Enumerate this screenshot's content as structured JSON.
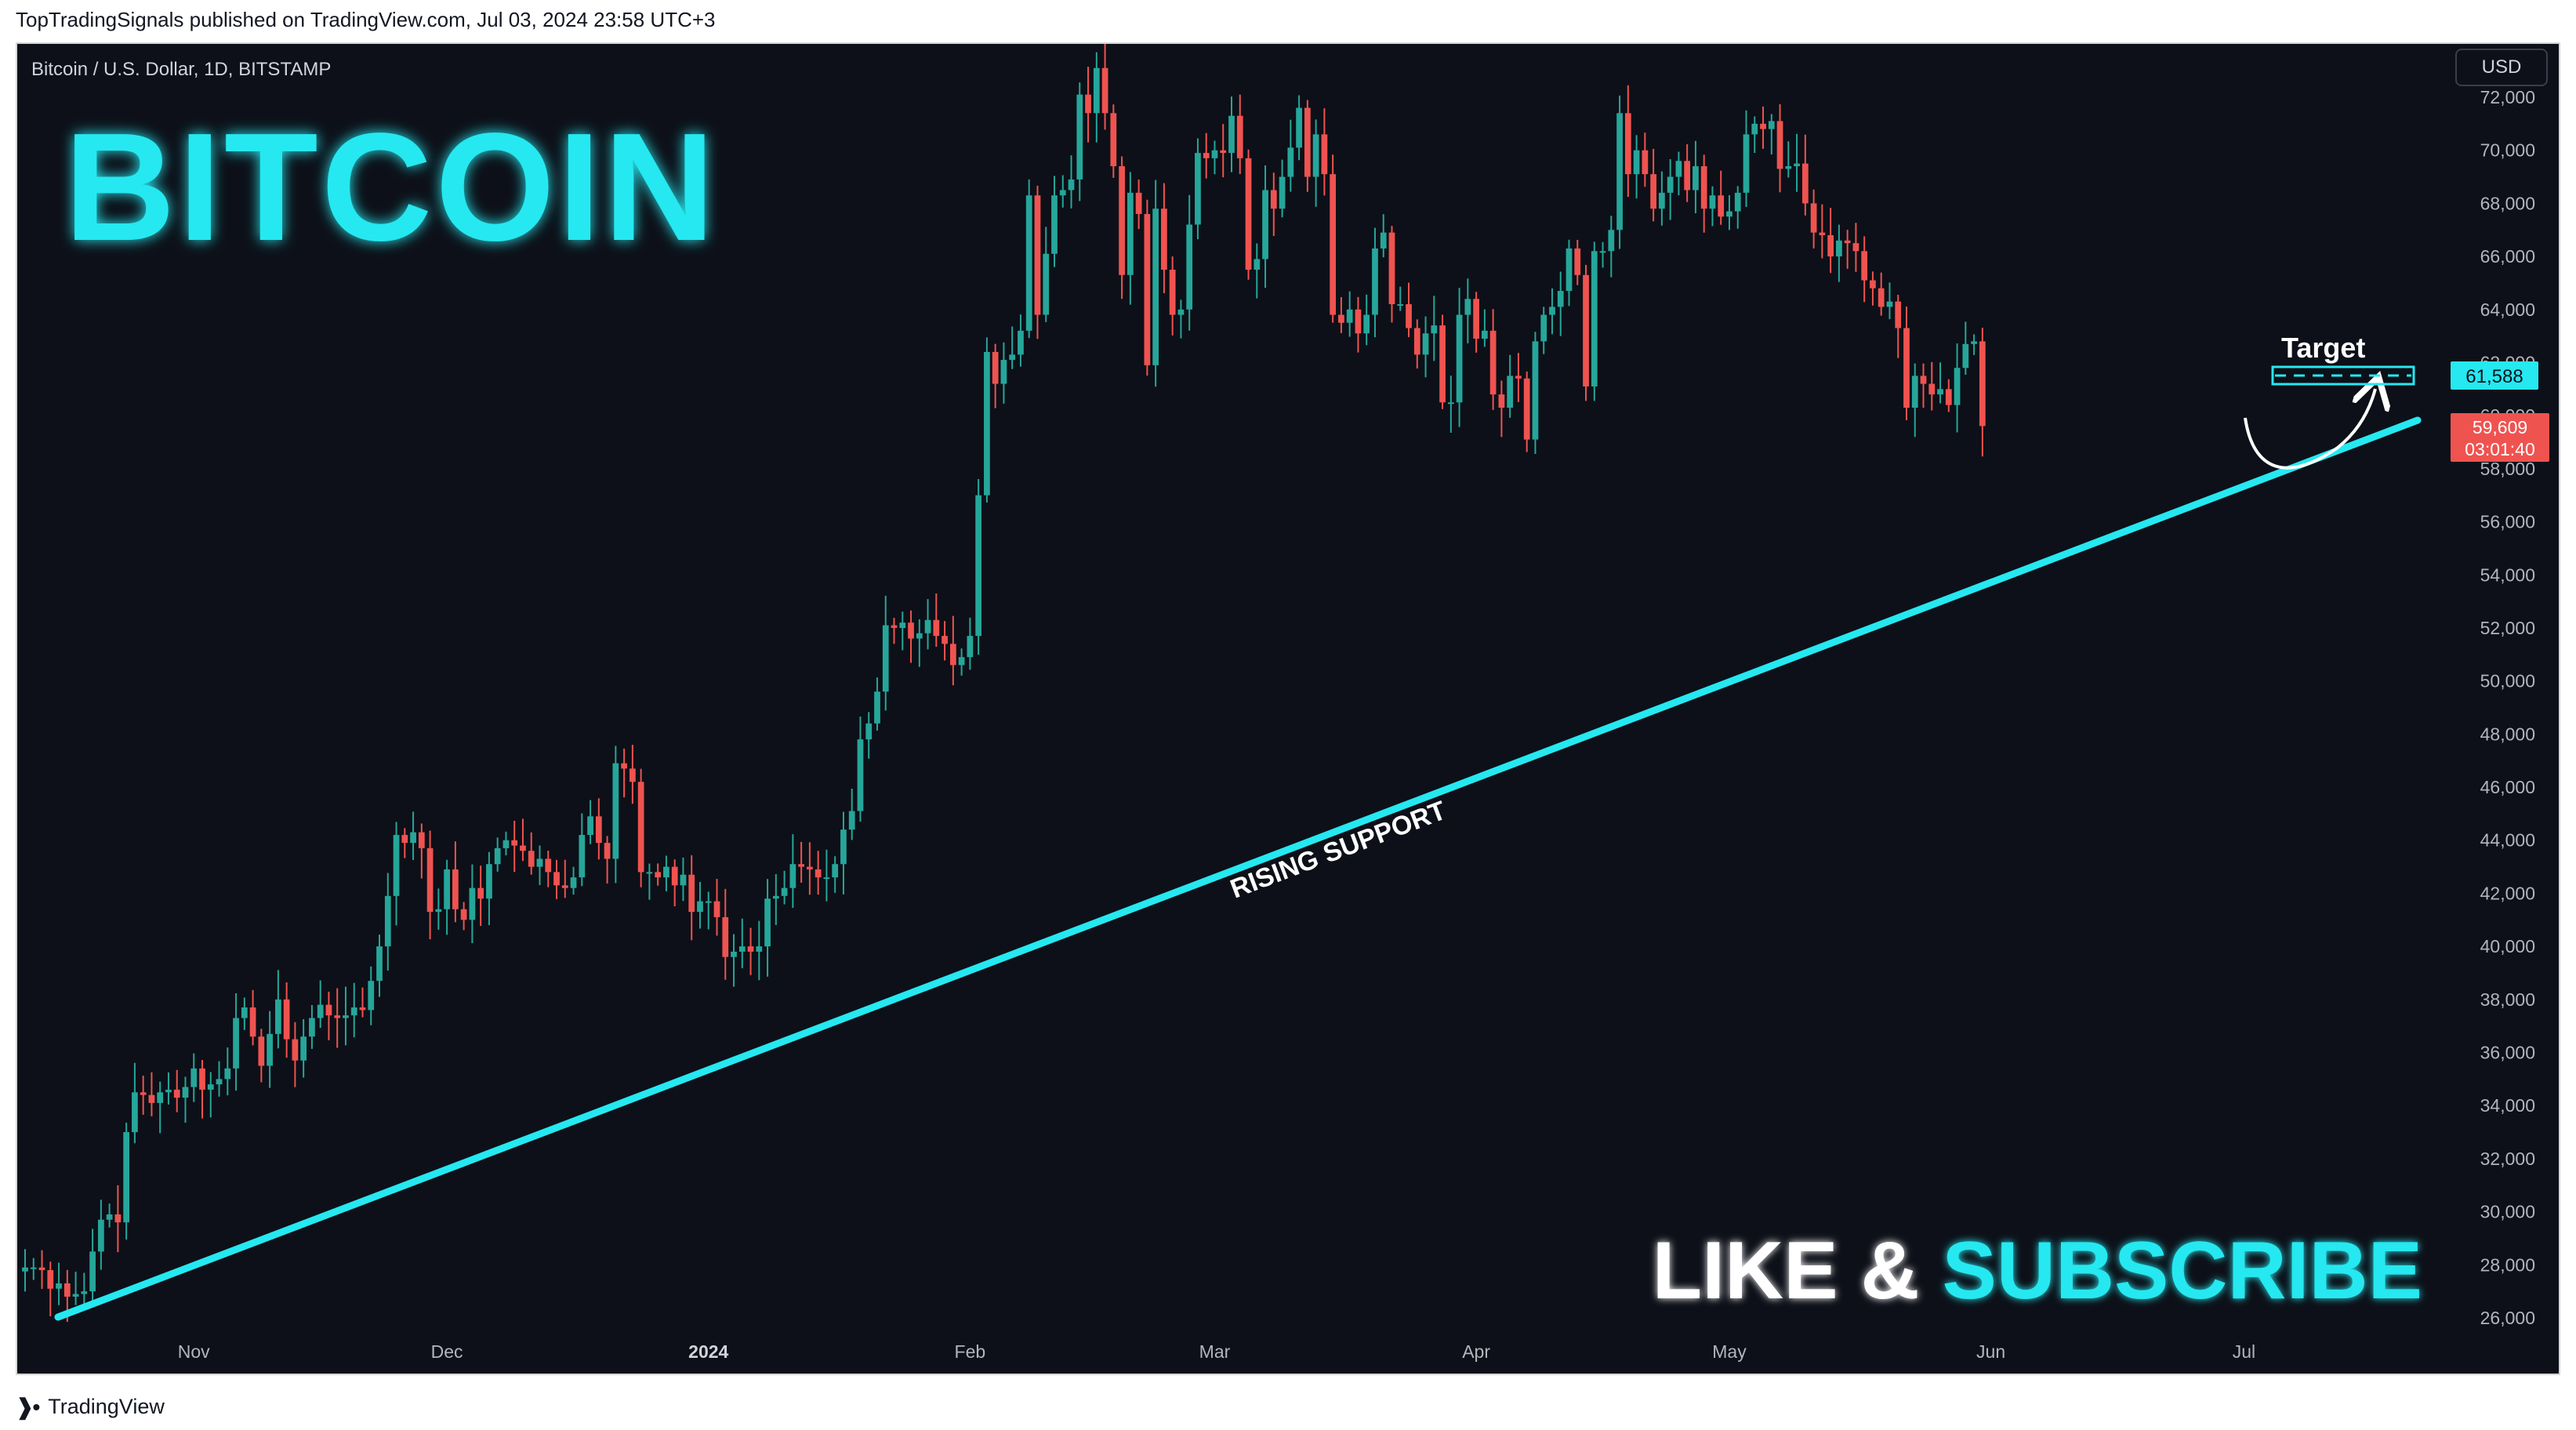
{
  "header": {
    "published_line": "TopTradingSignals published on TradingView.com, Jul 03, 2024 23:58 UTC+3"
  },
  "footer": {
    "logo_icon": "tradingview-logo-icon",
    "brand": "TradingView"
  },
  "chart": {
    "symbol_line": "Bitcoin / U.S. Dollar, 1D, BITSTAMP",
    "currency_button": "USD",
    "overlay_title": "BITCOIN",
    "overlay_cta_left": "LIKE & ",
    "overlay_cta_right": "SUBSCRIBE",
    "support_label": "RISING SUPPORT",
    "target_label": "Target",
    "price_tags": {
      "target_value": "61,588",
      "last_price": "59,609",
      "countdown": "03:01:40"
    },
    "colors": {
      "background": "#0d1018",
      "up": "#26a69a",
      "down": "#ef5350",
      "cyan": "#25e8f0",
      "axis_text": "#b2b5be",
      "white": "#ffffff"
    }
  },
  "chart_data": {
    "type": "candlestick",
    "ylim": [
      25000,
      73800
    ],
    "y_ticks": [
      26000,
      28000,
      30000,
      32000,
      34000,
      36000,
      38000,
      40000,
      42000,
      44000,
      46000,
      48000,
      50000,
      52000,
      54000,
      56000,
      58000,
      60000,
      62000,
      64000,
      66000,
      68000,
      70000,
      72000
    ],
    "x_ticks": [
      {
        "label": "Nov",
        "bold": false
      },
      {
        "label": "Dec",
        "bold": false
      },
      {
        "label": "2024",
        "bold": true
      },
      {
        "label": "Feb",
        "bold": false
      },
      {
        "label": "Mar",
        "bold": false
      },
      {
        "label": "Apr",
        "bold": false
      },
      {
        "label": "May",
        "bold": false
      },
      {
        "label": "Jun",
        "bold": false
      },
      {
        "label": "Jul",
        "bold": false
      }
    ],
    "start_date": "2023-10-12",
    "end_date": "2024-07-03",
    "closes": [
      27900,
      27900,
      27800,
      27100,
      27300,
      26800,
      26900,
      27000,
      28500,
      29700,
      29900,
      29600,
      33000,
      34500,
      34400,
      34100,
      34500,
      34600,
      34300,
      34700,
      35400,
      34600,
      34800,
      35000,
      35400,
      37300,
      37700,
      36600,
      35500,
      36700,
      38000,
      36500,
      35700,
      36600,
      37300,
      37800,
      37400,
      37300,
      37400,
      37700,
      37600,
      38700,
      40000,
      41900,
      44200,
      43900,
      44300,
      43700,
      41300,
      41400,
      42900,
      41400,
      41000,
      42200,
      41800,
      43100,
      43700,
      44000,
      43800,
      43600,
      43000,
      43300,
      42800,
      42300,
      42200,
      42600,
      44200,
      44900,
      43900,
      43300,
      46900,
      46700,
      46200,
      42800,
      42800,
      42600,
      43000,
      42300,
      42700,
      41300,
      41700,
      41700,
      41100,
      39600,
      39800,
      40000,
      39800,
      40000,
      41800,
      41900,
      42200,
      43100,
      43000,
      42900,
      42600,
      42600,
      43100,
      44400,
      45100,
      47800,
      48400,
      49600,
      52100,
      52000,
      52200,
      51600,
      51800,
      52300,
      51700,
      51400,
      50600,
      50900,
      51700,
      57000,
      62400,
      61200,
      62100,
      62300,
      63200,
      68300,
      63800,
      66100,
      68300,
      68500,
      68900,
      72100,
      71400,
      73100,
      71400,
      69400,
      65300,
      68400,
      67600,
      61900,
      67800,
      65500,
      63800,
      64000,
      67200,
      69900,
      69700,
      70000,
      69900,
      71300,
      69700,
      65500,
      65900,
      68500,
      67800,
      69000,
      70100,
      71600,
      69000,
      70600,
      69100,
      63800,
      63500,
      64000,
      63100,
      63800,
      66300,
      66900,
      64200,
      64200,
      63300,
      62300,
      63100,
      63400,
      60500,
      60500,
      63800,
      64400,
      62900,
      63200,
      60800,
      60300,
      61500,
      61400,
      59100,
      62800,
      63800,
      64100,
      64700,
      66300,
      65300,
      61100,
      66200,
      66200,
      67000,
      71400,
      69100,
      70000,
      69100,
      67800,
      68400,
      69000,
      69600,
      68500,
      69400,
      67800,
      68300,
      67500,
      67700,
      68400,
      70600,
      71000,
      70800,
      71100,
      69300,
      69400,
      69500,
      68000,
      66900,
      66800,
      66000,
      66600,
      66500,
      66200,
      65100,
      64800,
      64100,
      64300,
      63300,
      60300,
      61500,
      61200,
      60800,
      61000,
      60400,
      61800,
      62700,
      62800,
      59609
    ]
  }
}
